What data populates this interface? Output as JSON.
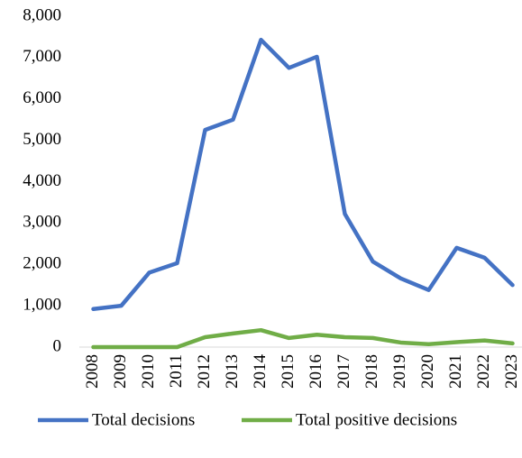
{
  "chart_data": {
    "type": "line",
    "categories": [
      "2008",
      "2009",
      "2010",
      "2011",
      "2012",
      "2013",
      "2014",
      "2015",
      "2016",
      "2017",
      "2018",
      "2019",
      "2020",
      "2021",
      "2022",
      "2023"
    ],
    "series": [
      {
        "name": "Total decisions",
        "color": "#4472c4",
        "values": [
          920,
          1000,
          1800,
          2030,
          5250,
          5500,
          7430,
          6750,
          7020,
          3220,
          2070,
          1660,
          1380,
          2400,
          2160,
          1500
        ]
      },
      {
        "name": "Total positive decisions",
        "color": "#70ad47",
        "values": [
          0,
          0,
          0,
          0,
          240,
          330,
          410,
          220,
          300,
          240,
          220,
          110,
          70,
          120,
          160,
          90
        ]
      }
    ],
    "ylim": [
      0,
      8000
    ],
    "yticks": [
      0,
      {
        "value": 1000,
        "label": "1,000"
      },
      {
        "value": 2000,
        "label": "2,000"
      },
      {
        "value": 3000,
        "label": "3,000"
      },
      {
        "value": 4000,
        "label": "4,000"
      },
      {
        "value": 5000,
        "label": "5,000"
      },
      {
        "value": 6000,
        "label": "6,000"
      },
      {
        "value": 7000,
        "label": "7,000"
      },
      {
        "value": 8000,
        "label": "8,000"
      }
    ],
    "grid": false,
    "legend": "bottom"
  }
}
